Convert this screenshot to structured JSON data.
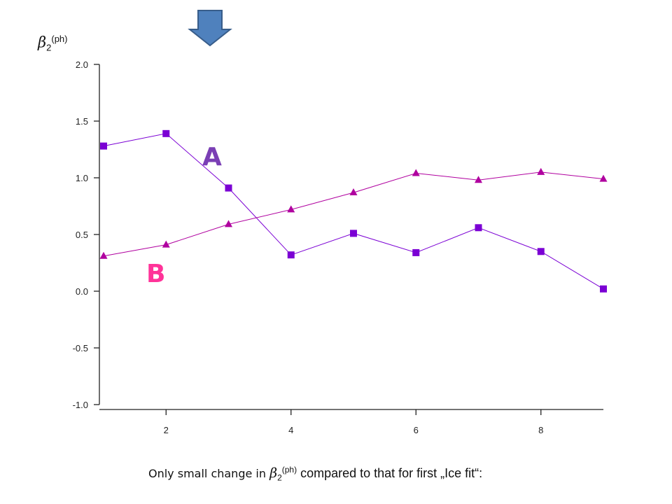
{
  "colors": {
    "series_a": "#7b00d4",
    "series_b": "#b0009f",
    "label_a": "#7a3fb5",
    "label_b": "#ff3399",
    "arrow_fill": "#4f81bd",
    "arrow_stroke": "#385d8a",
    "axis": "#222222"
  },
  "annotations": {
    "label_a": "A",
    "label_b": "B",
    "arrow_icon": "down-arrow-icon"
  },
  "ylabel": {
    "symbol": "β",
    "sub": "2",
    "sup": "(ph)"
  },
  "caption": {
    "text1": "Only small change in ",
    "symbol": "β",
    "sub": "2",
    "sup": "(ph)",
    "text2": " compared to that for first „Ice fit“:"
  },
  "chart_data": {
    "type": "line",
    "title": "",
    "xlabel": "",
    "ylabel": "β2(ph)",
    "x": [
      1,
      2,
      3,
      4,
      5,
      6,
      7,
      8,
      9
    ],
    "xlim": [
      1,
      9
    ],
    "ylim": [
      -1.0,
      2.0
    ],
    "xticks": [
      2,
      4,
      6,
      8
    ],
    "xtick_labels": [
      "2",
      "4",
      "6",
      "8"
    ],
    "yticks": [
      -1.0,
      -0.5,
      0.0,
      0.5,
      1.0,
      1.5,
      2.0
    ],
    "ytick_labels": [
      "-1.0",
      "-0.5",
      "0.0",
      "0.5",
      "1.0",
      "1.5",
      "2.0"
    ],
    "grid": false,
    "series": [
      {
        "name": "A",
        "marker": "square",
        "values": [
          1.28,
          1.39,
          0.91,
          0.32,
          0.51,
          0.34,
          0.56,
          0.35,
          0.02
        ]
      },
      {
        "name": "B",
        "marker": "triangle",
        "values": [
          0.31,
          0.41,
          0.59,
          0.72,
          0.87,
          1.04,
          0.98,
          1.05,
          0.99
        ]
      }
    ]
  }
}
